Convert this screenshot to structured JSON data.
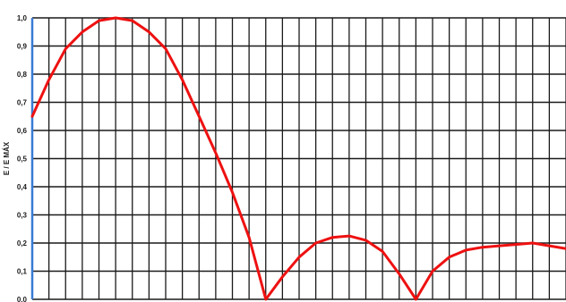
{
  "chart_data": {
    "type": "line",
    "title": "",
    "xlabel": "",
    "ylabel": "E / E MÁX",
    "ylim": [
      0,
      1
    ],
    "yticks": [
      "0,0",
      "0,1",
      "0,2",
      "0,3",
      "0,4",
      "0,5",
      "0,6",
      "0,7",
      "0,8",
      "0,9",
      "1,0"
    ],
    "grid": true,
    "grid_columns": 32,
    "series": [
      {
        "color": "#ee1111",
        "x": [
          0,
          1,
          2,
          3,
          4,
          5,
          6,
          7,
          8,
          9,
          10,
          11,
          12,
          13,
          14,
          15,
          16,
          17,
          18,
          19,
          20,
          21,
          22,
          23,
          24,
          25,
          26,
          27,
          28,
          29,
          30,
          31,
          32
        ],
        "y": [
          0.65,
          0.78,
          0.89,
          0.95,
          0.99,
          1.0,
          0.99,
          0.95,
          0.89,
          0.78,
          0.65,
          0.52,
          0.38,
          0.22,
          0.0,
          0.08,
          0.15,
          0.2,
          0.22,
          0.225,
          0.21,
          0.17,
          0.09,
          0.0,
          0.1,
          0.15,
          0.175,
          0.185,
          0.19,
          0.195,
          0.2,
          0.19,
          0.18
        ]
      }
    ]
  },
  "colors": {
    "grid": "#1a1a1a",
    "y_axis": "#3a7bd5",
    "tick_text": "#1a1a1a",
    "line": "#ee1111"
  }
}
